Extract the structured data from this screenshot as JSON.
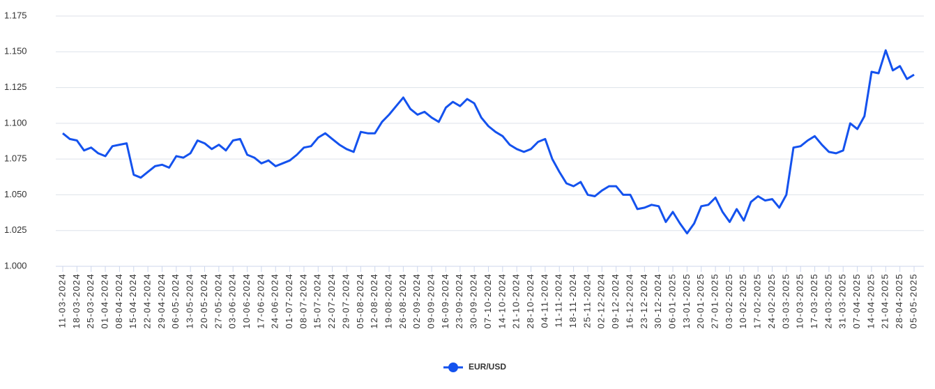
{
  "chart_data": {
    "type": "line",
    "categories": [
      "11-03-2024",
      null,
      "18-03-2024",
      null,
      "25-03-2024",
      null,
      "01-04-2024",
      null,
      "08-04-2024",
      null,
      "15-04-2024",
      null,
      "22-04-2024",
      null,
      "29-04-2024",
      null,
      "06-05-2024",
      null,
      "13-05-2024",
      null,
      "20-05-2024",
      null,
      "27-05-2024",
      null,
      "03-06-2024",
      null,
      "10-06-2024",
      null,
      "17-06-2024",
      null,
      "24-06-2024",
      null,
      "01-07-2024",
      null,
      "08-07-2024",
      null,
      "15-07-2024",
      null,
      "22-07-2024",
      null,
      "29-07-2024",
      null,
      "05-08-2024",
      null,
      "12-08-2024",
      null,
      "19-08-2024",
      null,
      "26-08-2024",
      null,
      "02-09-2024",
      null,
      "09-09-2024",
      null,
      "16-09-2024",
      null,
      "23-09-2024",
      null,
      "30-09-2024",
      null,
      "07-10-2024",
      null,
      "14-10-2024",
      null,
      "21-10-2024",
      null,
      "28-10-2024",
      null,
      "04-11-2024",
      null,
      "11-11-2024",
      null,
      "18-11-2024",
      null,
      "25-11-2024",
      null,
      "02-12-2024",
      null,
      "09-12-2024",
      null,
      "16-12-2024",
      null,
      "23-12-2024",
      null,
      "30-12-2024",
      null,
      "06-01-2025",
      null,
      "13-01-2025",
      null,
      "20-01-2025",
      null,
      "27-01-2025",
      null,
      "03-02-2025",
      null,
      "10-02-2025",
      null,
      "17-02-2025",
      null,
      "24-02-2025",
      null,
      "03-03-2025",
      null,
      "10-03-2025",
      null,
      "17-03-2025",
      null,
      "24-03-2025",
      null,
      "31-03-2025",
      null,
      "07-04-2025",
      null,
      "14-04-2025",
      null,
      "21-04-2025",
      null,
      "28-04-2025",
      null,
      "05-05-2025"
    ],
    "series": [
      {
        "name": "EUR/USD",
        "color": "#1452ee",
        "values": [
          1.093,
          1.089,
          1.088,
          1.081,
          1.083,
          1.079,
          1.077,
          1.084,
          1.085,
          1.086,
          1.064,
          1.062,
          1.066,
          1.07,
          1.071,
          1.069,
          1.077,
          1.076,
          1.079,
          1.088,
          1.086,
          1.082,
          1.085,
          1.081,
          1.088,
          1.089,
          1.078,
          1.076,
          1.072,
          1.074,
          1.07,
          1.072,
          1.074,
          1.078,
          1.083,
          1.084,
          1.09,
          1.093,
          1.089,
          1.085,
          1.082,
          1.08,
          1.094,
          1.093,
          1.093,
          1.101,
          1.106,
          1.112,
          1.118,
          1.11,
          1.106,
          1.108,
          1.104,
          1.101,
          1.111,
          1.115,
          1.112,
          1.117,
          1.114,
          1.104,
          1.098,
          1.094,
          1.091,
          1.085,
          1.082,
          1.08,
          1.082,
          1.087,
          1.089,
          1.075,
          1.066,
          1.058,
          1.056,
          1.059,
          1.05,
          1.049,
          1.053,
          1.056,
          1.056,
          1.05,
          1.05,
          1.04,
          1.041,
          1.043,
          1.042,
          1.031,
          1.038,
          1.03,
          1.023,
          1.03,
          1.042,
          1.043,
          1.048,
          1.038,
          1.031,
          1.04,
          1.032,
          1.045,
          1.049,
          1.046,
          1.047,
          1.041,
          1.05,
          1.083,
          1.084,
          1.088,
          1.091,
          1.085,
          1.08,
          1.079,
          1.081,
          1.1,
          1.096,
          1.105,
          1.136,
          1.135,
          1.151,
          1.137,
          1.14,
          1.131,
          1.134
        ]
      }
    ],
    "ylim": [
      1.0,
      1.175
    ],
    "yticks": [
      {
        "value": 1.0,
        "label": "1.000"
      },
      1.025,
      {
        "value": 1.05,
        "label": "1.050"
      },
      1.075,
      {
        "value": 1.1,
        "label": "1.100"
      },
      1.125,
      {
        "value": 1.15,
        "label": "1.150"
      },
      1.175
    ],
    "grid": true
  }
}
